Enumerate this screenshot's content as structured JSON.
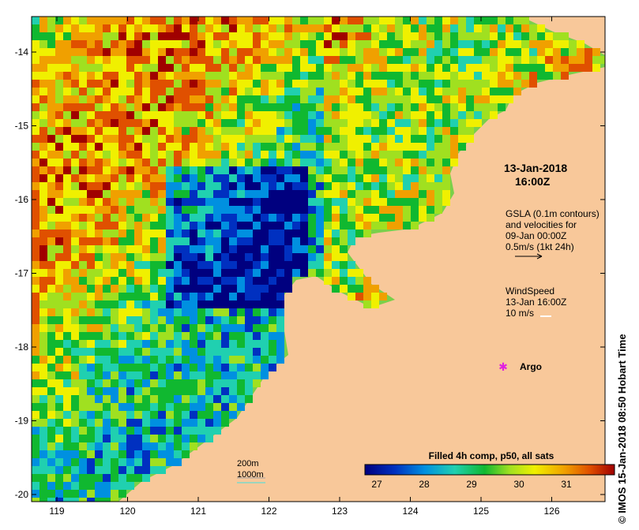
{
  "map": {
    "lon_ticks": [
      "119",
      "120",
      "121",
      "122",
      "123",
      "124",
      "125",
      "126"
    ],
    "lat_ticks": [
      "-14",
      "-15",
      "-16",
      "-17",
      "-18",
      "-19",
      "-20"
    ]
  },
  "annotations": {
    "date": "13-Jan-2018",
    "time": "16:00Z",
    "gsla_line1": "GSLA (0.1m contours)",
    "gsla_line2": "and velocities for",
    "gsla_line3": "09-Jan 00:00Z",
    "gsla_line4": "0.5m/s (1kt 24h)",
    "wind_line1": "WindSpeed",
    "wind_line2": "13-Jan 16:00Z",
    "wind_line3": "10 m/s",
    "argo": "Argo"
  },
  "scale": {
    "depth1": "200m",
    "depth2": "1000m"
  },
  "colorbar": {
    "title": "Filled 4h comp, p50, all sats",
    "ticks": [
      "27",
      "28",
      "29",
      "30",
      "31"
    ]
  },
  "credit": "© IMOS 15-Jan-2018 08:50 Hobart Time",
  "colors": {
    "land": "#f8c89a",
    "colormap": [
      "#00007f",
      "#0030c0",
      "#0090e0",
      "#20d0b0",
      "#10b830",
      "#a0e020",
      "#f0f000",
      "#f0a000",
      "#e05000",
      "#a00000"
    ]
  }
}
